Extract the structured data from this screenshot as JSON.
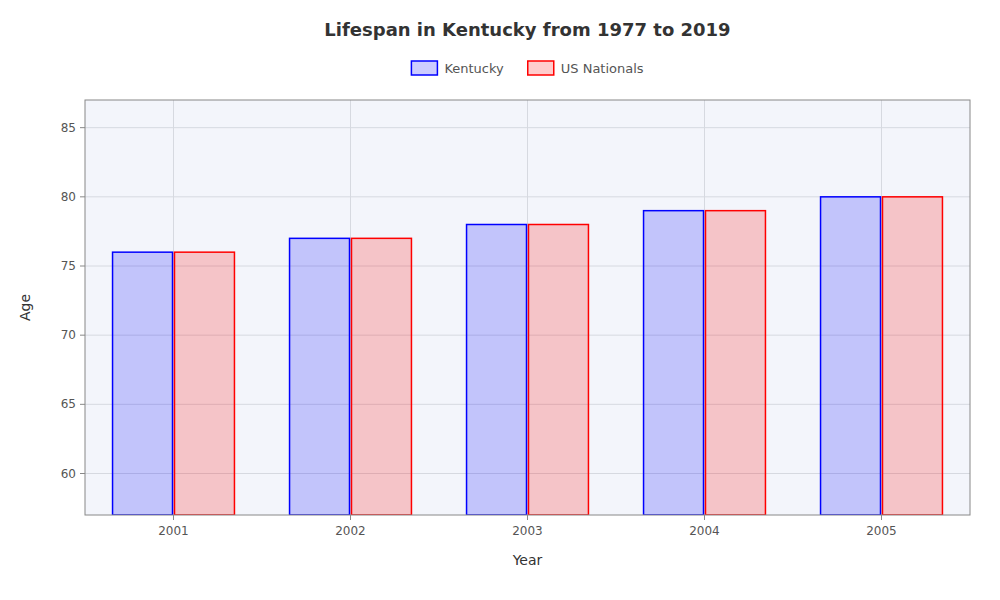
{
  "chart_data": {
    "type": "bar",
    "title": "Lifespan in Kentucky from 1977 to 2019",
    "x_label": "Year",
    "y_label": "Age",
    "categories": [
      "2001",
      "2002",
      "2003",
      "2004",
      "2005"
    ],
    "series": [
      {
        "name": "Kentucky",
        "color": "#0000ff",
        "values": [
          76,
          77,
          78,
          79,
          80
        ]
      },
      {
        "name": "US Nationals",
        "color": "#ff0000",
        "values": [
          76,
          77,
          78,
          79,
          80
        ]
      }
    ],
    "ylim": [
      57,
      87
    ],
    "yticks": [
      60,
      65,
      70,
      75,
      80,
      85
    ],
    "grid": true,
    "legend": "top"
  }
}
